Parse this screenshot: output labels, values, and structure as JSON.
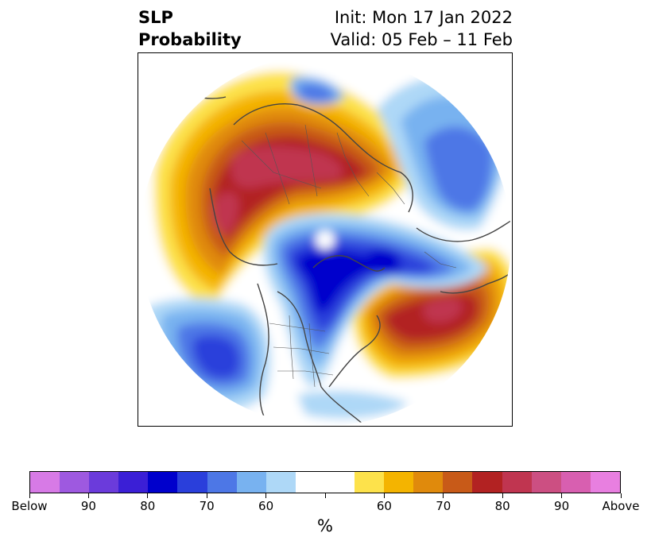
{
  "title": {
    "left_line1": "SLP",
    "left_line2": "Probability",
    "right_line1": "Init: Mon 17 Jan 2022",
    "right_line2": "Valid: 05 Feb – 11 Feb"
  },
  "map": {
    "projection": "north-polar-stereographic",
    "features": [
      "coastlines",
      "country-borders",
      "us-state-borders"
    ]
  },
  "colorbar": {
    "unit": "%",
    "colors": [
      "#d77ae6",
      "#9e59e0",
      "#6b3bdb",
      "#3b1fd6",
      "#0000cc",
      "#2a3fdb",
      "#4d77e6",
      "#78b2f0",
      "#aed8f7",
      "#ffffff",
      "#ffffff",
      "#fde24b",
      "#f4b400",
      "#e08a0c",
      "#c85a18",
      "#b22222",
      "#c03550",
      "#cc4f82",
      "#d85fb0",
      "#e87fe0"
    ],
    "tick_labels": [
      "Below",
      "90",
      "80",
      "70",
      "60",
      "",
      "60",
      "70",
      "80",
      "90",
      "Above"
    ]
  }
}
